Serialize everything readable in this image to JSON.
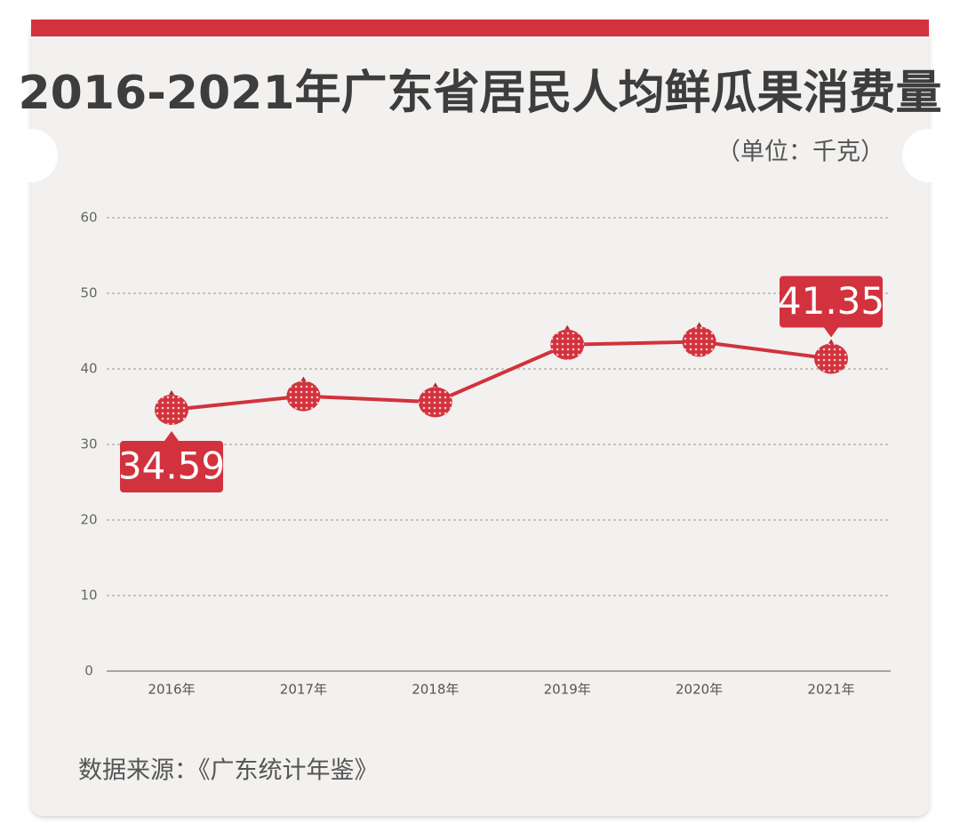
{
  "chart_data": {
    "type": "line",
    "title": "2016-2021年广东省居民人均鲜瓜果消费量",
    "unit": "（单位：千克）",
    "source": "数据来源：《广东统计年鉴》",
    "categories": [
      "2016年",
      "2017年",
      "2018年",
      "2019年",
      "2020年",
      "2021年"
    ],
    "values": [
      34.59,
      36.4,
      35.6,
      43.2,
      43.6,
      41.35
    ],
    "value_labels": [
      "34.59",
      null,
      null,
      null,
      null,
      "41.35"
    ],
    "color": "#d2323d",
    "ylim": [
      0,
      60
    ],
    "yticks": [
      0,
      10,
      20,
      30,
      40,
      50,
      60
    ],
    "grid": true
  }
}
